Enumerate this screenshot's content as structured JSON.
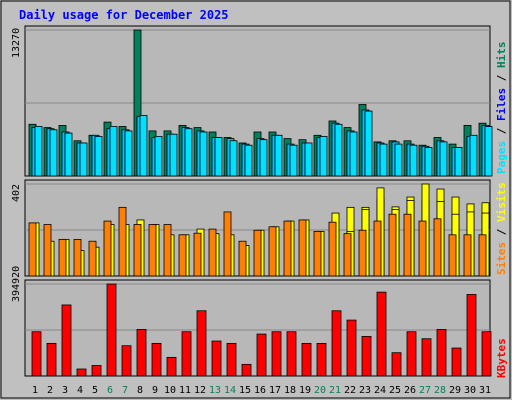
{
  "colors": {
    "background": "#c0c0c0",
    "plot": "#b8b8b8",
    "title": "#0000ff",
    "hits": "#00805c",
    "files": "#00c0ff",
    "pages": "#00e0ff",
    "visits": "#ffff00",
    "sites": "#ff8000",
    "kbytes": "#ff0000",
    "weekend_day": "#00805c",
    "weekday": "#000000"
  },
  "chart_data": [
    {
      "type": "bar",
      "title": "Daily usage for December 2025",
      "categories": [
        "1",
        "2",
        "3",
        "4",
        "5",
        "6",
        "7",
        "8",
        "9",
        "10",
        "11",
        "12",
        "13",
        "14",
        "15",
        "16",
        "17",
        "18",
        "19",
        "20",
        "21",
        "22",
        "23",
        "24",
        "25",
        "26",
        "27",
        "28",
        "29",
        "30",
        "31"
      ],
      "weekend_days": [
        "6",
        "7",
        "13",
        "14",
        "20",
        "21",
        "27",
        "28"
      ],
      "ylim": [
        0,
        13270
      ],
      "ymax_label": "13270",
      "legend": [
        "Pages",
        "Files",
        "Hits"
      ],
      "series": [
        {
          "name": "Hits",
          "values": [
            4700,
            4400,
            4600,
            3200,
            3700,
            4900,
            4500,
            13270,
            4100,
            4100,
            4600,
            4400,
            4000,
            3500,
            3000,
            4000,
            4000,
            3400,
            3300,
            3700,
            5000,
            4400,
            6500,
            3100,
            3200,
            3200,
            2800,
            3500,
            2900,
            4600,
            4800
          ]
        },
        {
          "name": "Files",
          "values": [
            4400,
            4300,
            4000,
            3000,
            3700,
            4300,
            4200,
            5400,
            3500,
            3800,
            4400,
            4100,
            3500,
            3400,
            2900,
            3400,
            3700,
            2900,
            3000,
            3500,
            4800,
            4100,
            6000,
            3000,
            3100,
            2900,
            2700,
            3200,
            2600,
            3600,
            4600
          ]
        },
        {
          "name": "Pages",
          "values": [
            4500,
            4200,
            3900,
            3000,
            3600,
            4500,
            4100,
            5500,
            3600,
            3800,
            4300,
            4000,
            3500,
            3200,
            2800,
            3300,
            3700,
            2800,
            3000,
            3600,
            4700,
            4000,
            5900,
            2900,
            2900,
            2800,
            2600,
            3100,
            2600,
            3700,
            4500
          ]
        }
      ]
    },
    {
      "type": "bar",
      "categories": [
        "1",
        "2",
        "3",
        "4",
        "5",
        "6",
        "7",
        "8",
        "9",
        "10",
        "11",
        "12",
        "13",
        "14",
        "15",
        "16",
        "17",
        "18",
        "19",
        "20",
        "21",
        "22",
        "23",
        "24",
        "25",
        "26",
        "27",
        "28",
        "29",
        "30",
        "31"
      ],
      "ylim": [
        0,
        402
      ],
      "ymax_label": "402",
      "legend": [
        "Sites",
        "Visits"
      ],
      "series": [
        {
          "name": "Visits",
          "values": [
            0,
            0,
            0,
            0,
            0,
            0,
            0,
            0,
            0,
            0,
            0,
            0,
            0,
            0,
            0,
            0,
            0,
            0,
            0,
            0,
            0,
            300,
            300,
            337,
            302,
            345,
            328,
            380,
            345,
            315,
            320
          ]
        },
        {
          "name": "Visits",
          "values": [
            232,
            152,
            160,
            111,
            126,
            225,
            225,
            245,
            225,
            180,
            180,
            205,
            185,
            180,
            133,
            200,
            215,
            240,
            245,
            195,
            275,
            195,
            290,
            385,
            290,
            330,
            402,
            325,
            270,
            280,
            275
          ]
        },
        {
          "name": "Sites",
          "values": [
            232,
            225,
            160,
            160,
            152,
            240,
            300,
            225,
            225,
            225,
            180,
            187,
            205,
            280,
            152,
            200,
            215,
            240,
            245,
            195,
            235,
            185,
            200,
            240,
            270,
            270,
            240,
            250,
            180,
            180,
            180
          ]
        }
      ]
    },
    {
      "type": "bar",
      "categories": [
        "1",
        "2",
        "3",
        "4",
        "5",
        "6",
        "7",
        "8",
        "9",
        "10",
        "11",
        "12",
        "13",
        "14",
        "15",
        "16",
        "17",
        "18",
        "19",
        "20",
        "21",
        "22",
        "23",
        "24",
        "25",
        "26",
        "27",
        "28",
        "29",
        "30",
        "31"
      ],
      "ylim": [
        0,
        394920
      ],
      "ymax_label": "394920",
      "legend": [
        "KBytes"
      ],
      "series": [
        {
          "name": "KBytes",
          "values": [
            190000,
            140000,
            305000,
            30000,
            45000,
            394920,
            130000,
            200000,
            140000,
            80000,
            190000,
            280000,
            150000,
            140000,
            50000,
            180000,
            190000,
            190000,
            140000,
            140000,
            280000,
            240000,
            170000,
            360000,
            100000,
            190000,
            160000,
            200000,
            120000,
            350000,
            190000
          ]
        }
      ]
    }
  ]
}
